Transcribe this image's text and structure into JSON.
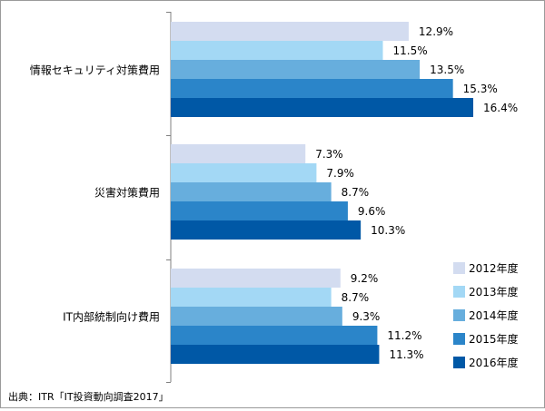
{
  "chart_data": {
    "type": "bar",
    "orientation": "horizontal",
    "categories": [
      "情報セキュリティ対策費用",
      "災害対策費用",
      "IT内部統制向け費用"
    ],
    "series": [
      {
        "name": "2012年度",
        "color": "#d3dcf0",
        "values": [
          12.9,
          7.3,
          9.2
        ],
        "labels": [
          "12.9%",
          "7.3%",
          "9.2%"
        ]
      },
      {
        "name": "2013年度",
        "color": "#a3d8f5",
        "values": [
          11.5,
          7.9,
          8.7
        ],
        "labels": [
          "11.5%",
          "7.9%",
          "8.7%"
        ]
      },
      {
        "name": "2014年度",
        "color": "#67aedd",
        "values": [
          13.5,
          8.7,
          9.3
        ],
        "labels": [
          "13.5%",
          "8.7%",
          "9.3%"
        ]
      },
      {
        "name": "2015年度",
        "color": "#2b85c9",
        "values": [
          15.3,
          9.6,
          11.2
        ],
        "labels": [
          "15.3%",
          "9.6%",
          "11.2%"
        ]
      },
      {
        "name": "2016年度",
        "color": "#0058a6",
        "values": [
          16.4,
          10.3,
          11.3
        ],
        "labels": [
          "16.4%",
          "10.3%",
          "11.3%"
        ]
      }
    ],
    "xlim": [
      0,
      20
    ],
    "grid": false,
    "legend_position": "bottom-right",
    "source": "出典：ITR「IT投資動向調査2017」"
  }
}
